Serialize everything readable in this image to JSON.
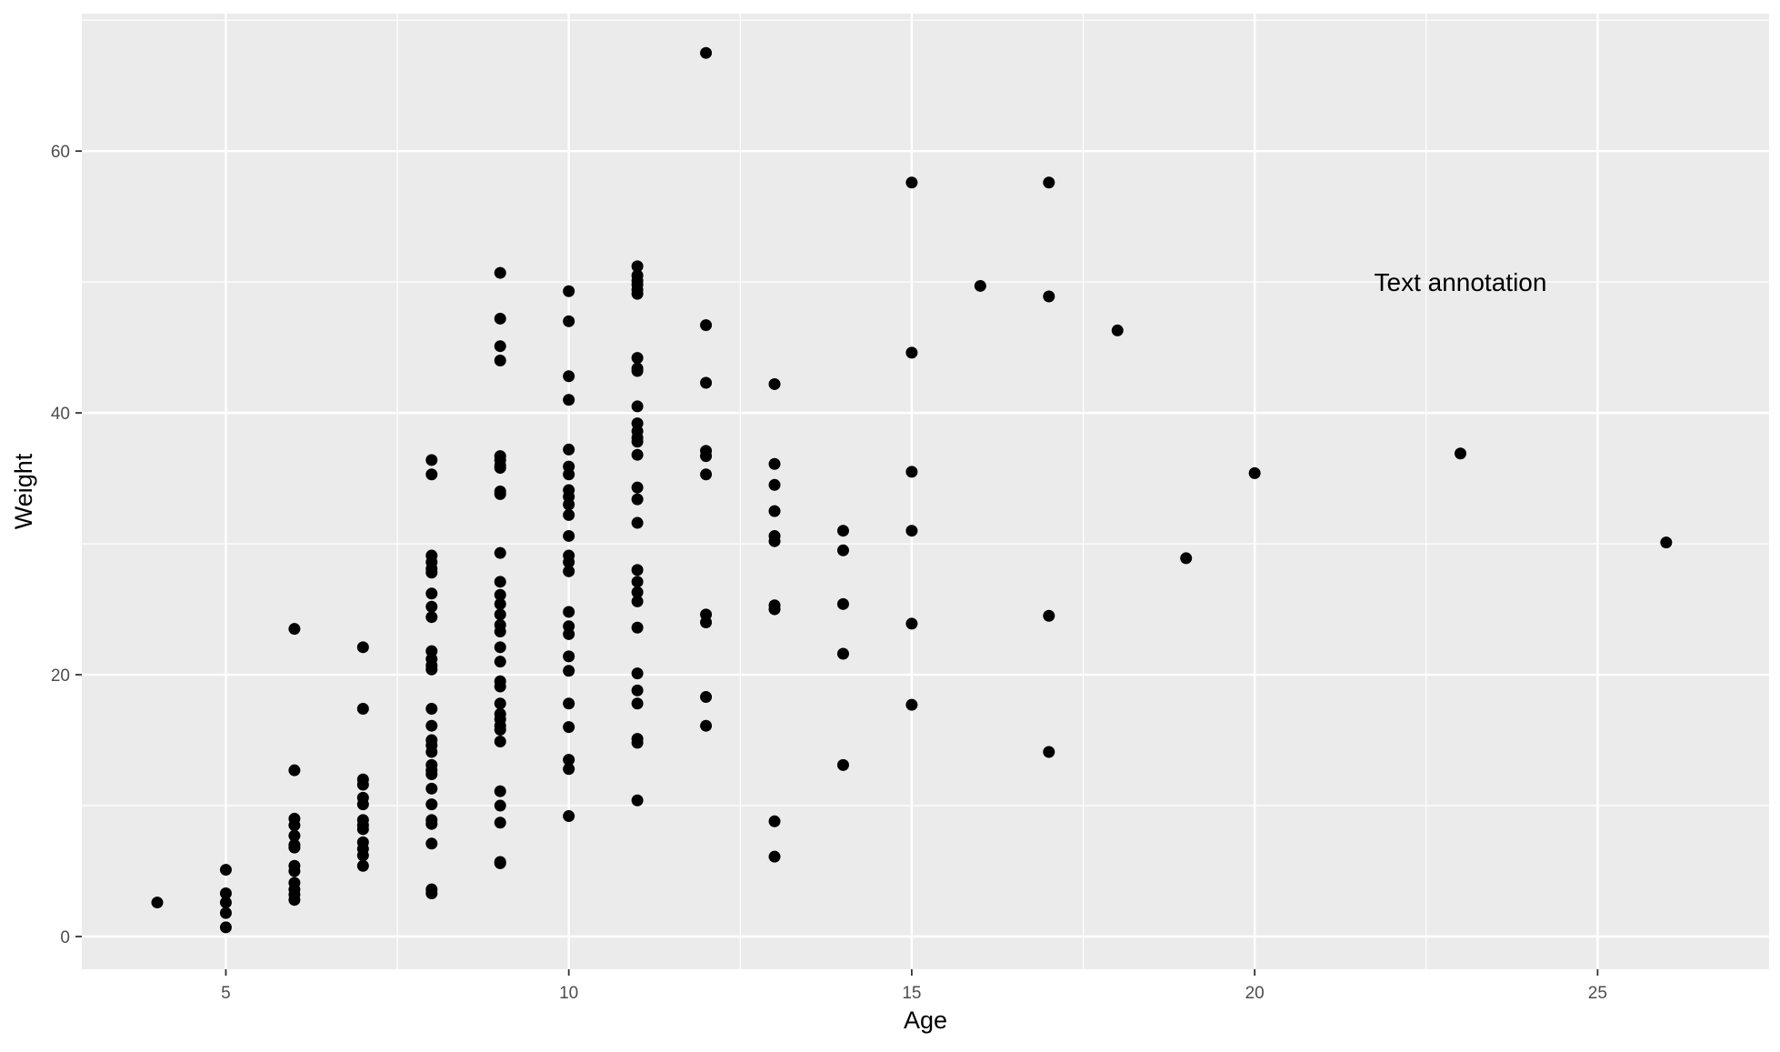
{
  "chart_data": {
    "type": "scatter",
    "title": "",
    "xlabel": "Age",
    "ylabel": "Weight",
    "xlim": [
      2.9,
      27.5
    ],
    "ylim": [
      -2.5,
      70.5
    ],
    "x_ticks": [
      5,
      10,
      15,
      20,
      25
    ],
    "y_ticks": [
      0,
      20,
      40,
      60
    ],
    "x_tick_labels": [
      "5",
      "10",
      "15",
      "20",
      "25"
    ],
    "y_tick_labels": [
      "0",
      "20",
      "40",
      "60"
    ],
    "grid": true,
    "legend": "none",
    "colors": {
      "panel_background": "#ebebeb",
      "grid_major": "#ffffff",
      "point": "#000000",
      "tick_text": "#4d4d4d",
      "axis_title": "#000000"
    },
    "annotations": [
      {
        "text": "Text annotation",
        "x": 23,
        "y": 50
      }
    ],
    "series": [
      {
        "points": [
          [
            4,
            2.6
          ],
          [
            5,
            5.1
          ],
          [
            5,
            3.3
          ],
          [
            5,
            2.6
          ],
          [
            5,
            1.8
          ],
          [
            5,
            0.7
          ],
          [
            6,
            23.5
          ],
          [
            6,
            12.7
          ],
          [
            6,
            9.0
          ],
          [
            6,
            8.5
          ],
          [
            6,
            7.7
          ],
          [
            6,
            7.0
          ],
          [
            6,
            6.8
          ],
          [
            6,
            5.4
          ],
          [
            6,
            5.0
          ],
          [
            6,
            4.1
          ],
          [
            6,
            3.6
          ],
          [
            6,
            3.2
          ],
          [
            6,
            2.8
          ],
          [
            7,
            22.1
          ],
          [
            7,
            17.4
          ],
          [
            7,
            12.0
          ],
          [
            7,
            11.6
          ],
          [
            7,
            10.6
          ],
          [
            7,
            10.1
          ],
          [
            7,
            8.9
          ],
          [
            7,
            8.5
          ],
          [
            7,
            8.2
          ],
          [
            7,
            7.2
          ],
          [
            7,
            6.7
          ],
          [
            7,
            6.2
          ],
          [
            7,
            5.4
          ],
          [
            8,
            36.4
          ],
          [
            8,
            35.3
          ],
          [
            8,
            29.1
          ],
          [
            8,
            28.6
          ],
          [
            8,
            28.1
          ],
          [
            8,
            27.8
          ],
          [
            8,
            26.2
          ],
          [
            8,
            25.2
          ],
          [
            8,
            24.4
          ],
          [
            8,
            21.8
          ],
          [
            8,
            21.2
          ],
          [
            8,
            20.7
          ],
          [
            8,
            20.4
          ],
          [
            8,
            17.4
          ],
          [
            8,
            16.1
          ],
          [
            8,
            15.0
          ],
          [
            8,
            14.6
          ],
          [
            8,
            14.1
          ],
          [
            8,
            13.1
          ],
          [
            8,
            12.7
          ],
          [
            8,
            12.4
          ],
          [
            8,
            11.3
          ],
          [
            8,
            10.1
          ],
          [
            8,
            8.9
          ],
          [
            8,
            8.6
          ],
          [
            8,
            7.1
          ],
          [
            8,
            3.6
          ],
          [
            8,
            3.3
          ],
          [
            9,
            50.7
          ],
          [
            9,
            47.2
          ],
          [
            9,
            45.1
          ],
          [
            9,
            44.0
          ],
          [
            9,
            36.7
          ],
          [
            9,
            36.4
          ],
          [
            9,
            36.0
          ],
          [
            9,
            35.8
          ],
          [
            9,
            34.0
          ],
          [
            9,
            33.8
          ],
          [
            9,
            29.3
          ],
          [
            9,
            27.1
          ],
          [
            9,
            26.1
          ],
          [
            9,
            25.4
          ],
          [
            9,
            24.6
          ],
          [
            9,
            23.8
          ],
          [
            9,
            23.3
          ],
          [
            9,
            22.1
          ],
          [
            9,
            21.0
          ],
          [
            9,
            19.5
          ],
          [
            9,
            19.1
          ],
          [
            9,
            17.8
          ],
          [
            9,
            17.0
          ],
          [
            9,
            16.6
          ],
          [
            9,
            16.1
          ],
          [
            9,
            15.8
          ],
          [
            9,
            14.9
          ],
          [
            9,
            11.1
          ],
          [
            9,
            10.0
          ],
          [
            9,
            8.7
          ],
          [
            9,
            5.7
          ],
          [
            9,
            5.6
          ],
          [
            10,
            49.3
          ],
          [
            10,
            47.0
          ],
          [
            10,
            42.8
          ],
          [
            10,
            41.0
          ],
          [
            10,
            37.2
          ],
          [
            10,
            35.9
          ],
          [
            10,
            35.3
          ],
          [
            10,
            34.1
          ],
          [
            10,
            33.6
          ],
          [
            10,
            33.0
          ],
          [
            10,
            32.2
          ],
          [
            10,
            30.6
          ],
          [
            10,
            29.1
          ],
          [
            10,
            28.6
          ],
          [
            10,
            27.9
          ],
          [
            10,
            24.8
          ],
          [
            10,
            23.7
          ],
          [
            10,
            23.1
          ],
          [
            10,
            21.4
          ],
          [
            10,
            20.3
          ],
          [
            10,
            17.8
          ],
          [
            10,
            16.0
          ],
          [
            10,
            13.5
          ],
          [
            10,
            12.8
          ],
          [
            10,
            9.2
          ],
          [
            11,
            51.2
          ],
          [
            11,
            50.5
          ],
          [
            11,
            50.1
          ],
          [
            11,
            49.8
          ],
          [
            11,
            49.4
          ],
          [
            11,
            49.1
          ],
          [
            11,
            44.2
          ],
          [
            11,
            43.4
          ],
          [
            11,
            43.2
          ],
          [
            11,
            40.5
          ],
          [
            11,
            39.2
          ],
          [
            11,
            38.6
          ],
          [
            11,
            38.1
          ],
          [
            11,
            37.8
          ],
          [
            11,
            36.8
          ],
          [
            11,
            34.3
          ],
          [
            11,
            33.4
          ],
          [
            11,
            31.6
          ],
          [
            11,
            28.0
          ],
          [
            11,
            27.1
          ],
          [
            11,
            26.3
          ],
          [
            11,
            25.6
          ],
          [
            11,
            23.6
          ],
          [
            11,
            20.1
          ],
          [
            11,
            18.8
          ],
          [
            11,
            17.8
          ],
          [
            11,
            15.1
          ],
          [
            11,
            14.8
          ],
          [
            11,
            10.4
          ],
          [
            12,
            67.5
          ],
          [
            12,
            46.7
          ],
          [
            12,
            42.3
          ],
          [
            12,
            37.1
          ],
          [
            12,
            36.7
          ],
          [
            12,
            35.3
          ],
          [
            12,
            24.6
          ],
          [
            12,
            24.0
          ],
          [
            12,
            18.3
          ],
          [
            12,
            16.1
          ],
          [
            13,
            42.2
          ],
          [
            13,
            36.1
          ],
          [
            13,
            34.5
          ],
          [
            13,
            32.5
          ],
          [
            13,
            30.6
          ],
          [
            13,
            30.2
          ],
          [
            13,
            25.3
          ],
          [
            13,
            25.0
          ],
          [
            13,
            8.8
          ],
          [
            13,
            6.1
          ],
          [
            14,
            31.0
          ],
          [
            14,
            29.5
          ],
          [
            14,
            25.4
          ],
          [
            14,
            21.6
          ],
          [
            14,
            13.1
          ],
          [
            15,
            57.6
          ],
          [
            15,
            44.6
          ],
          [
            15,
            35.5
          ],
          [
            15,
            31.0
          ],
          [
            15,
            23.9
          ],
          [
            15,
            17.7
          ],
          [
            16,
            49.7
          ],
          [
            17,
            57.6
          ],
          [
            17,
            48.9
          ],
          [
            17,
            24.5
          ],
          [
            17,
            14.1
          ],
          [
            18,
            46.3
          ],
          [
            19,
            28.9
          ],
          [
            20,
            35.4
          ],
          [
            23,
            36.9
          ],
          [
            26,
            30.1
          ]
        ]
      }
    ]
  }
}
